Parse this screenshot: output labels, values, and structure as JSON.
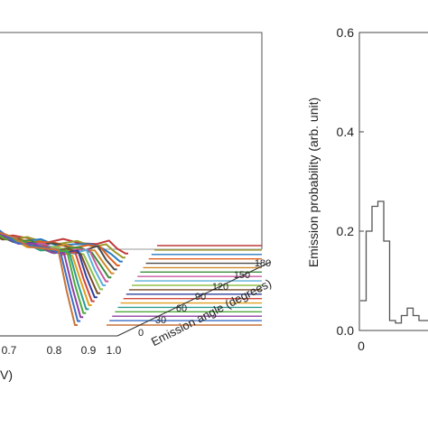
{
  "chart_data": [
    {
      "type": "line",
      "subtype": "3d-waterfall",
      "xlabel_visible": "V)",
      "x_ticks": [
        "0.7",
        "0.8",
        "0.9",
        "1.0"
      ],
      "depth_label": "Emission angle (degrees)",
      "depth_ticks": [
        "0",
        "30",
        "60",
        "90",
        "120",
        "150",
        "180"
      ],
      "depth_angles": [
        0,
        10,
        20,
        30,
        40,
        50,
        60,
        70,
        80,
        90,
        100,
        110,
        120,
        130,
        140,
        150,
        160,
        170,
        180
      ],
      "x_range": [
        0.6,
        1.0
      ],
      "note": "x axis cropped at left edge; series colors cycle per emission angle",
      "series_colors": [
        "#c8743a",
        "#3a6fc8",
        "#8e3fa3",
        "#4faa3c",
        "#2a9e8e",
        "#e0a020",
        "#d2463c",
        "#2f3f9e",
        "#7a4a28",
        "#8fc04a",
        "#5ab0d8",
        "#c85aa0",
        "#3c8c3c",
        "#d08a2a",
        "#4a4a4a",
        "#e06020",
        "#2a7abf",
        "#9a9a2a",
        "#c03a3a"
      ],
      "peak_curve_points": [
        {
          "x": 0.6,
          "y": 0.92
        },
        {
          "x": 0.64,
          "y": 0.8
        },
        {
          "x": 0.68,
          "y": 0.68
        },
        {
          "x": 0.72,
          "y": 0.6
        },
        {
          "x": 0.76,
          "y": 0.55
        },
        {
          "x": 0.8,
          "y": 0.5
        },
        {
          "x": 0.84,
          "y": 0.47
        },
        {
          "x": 0.88,
          "y": 0.44
        },
        {
          "x": 0.91,
          "y": 0.43
        },
        {
          "x": 0.93,
          "y": 0.2
        },
        {
          "x": 0.95,
          "y": 0.0
        },
        {
          "x": 1.0,
          "y": 0.0
        }
      ]
    },
    {
      "type": "line",
      "subtype": "histogram-step",
      "ylabel": "Emission probability (arb. unit)",
      "ylim": [
        0,
        0.6
      ],
      "y_ticks": [
        "0.0",
        "0.2",
        "0.4",
        "0.6"
      ],
      "x_ticks": [
        "0"
      ],
      "bins": [
        {
          "x": 0,
          "y": 0.06
        },
        {
          "x": 1,
          "y": 0.2
        },
        {
          "x": 2,
          "y": 0.25
        },
        {
          "x": 3,
          "y": 0.26
        },
        {
          "x": 4,
          "y": 0.18
        },
        {
          "x": 5,
          "y": 0.02
        },
        {
          "x": 6,
          "y": 0.015
        },
        {
          "x": 7,
          "y": 0.03
        },
        {
          "x": 8,
          "y": 0.045
        },
        {
          "x": 9,
          "y": 0.03
        },
        {
          "x": 10,
          "y": 0.02
        }
      ]
    }
  ]
}
